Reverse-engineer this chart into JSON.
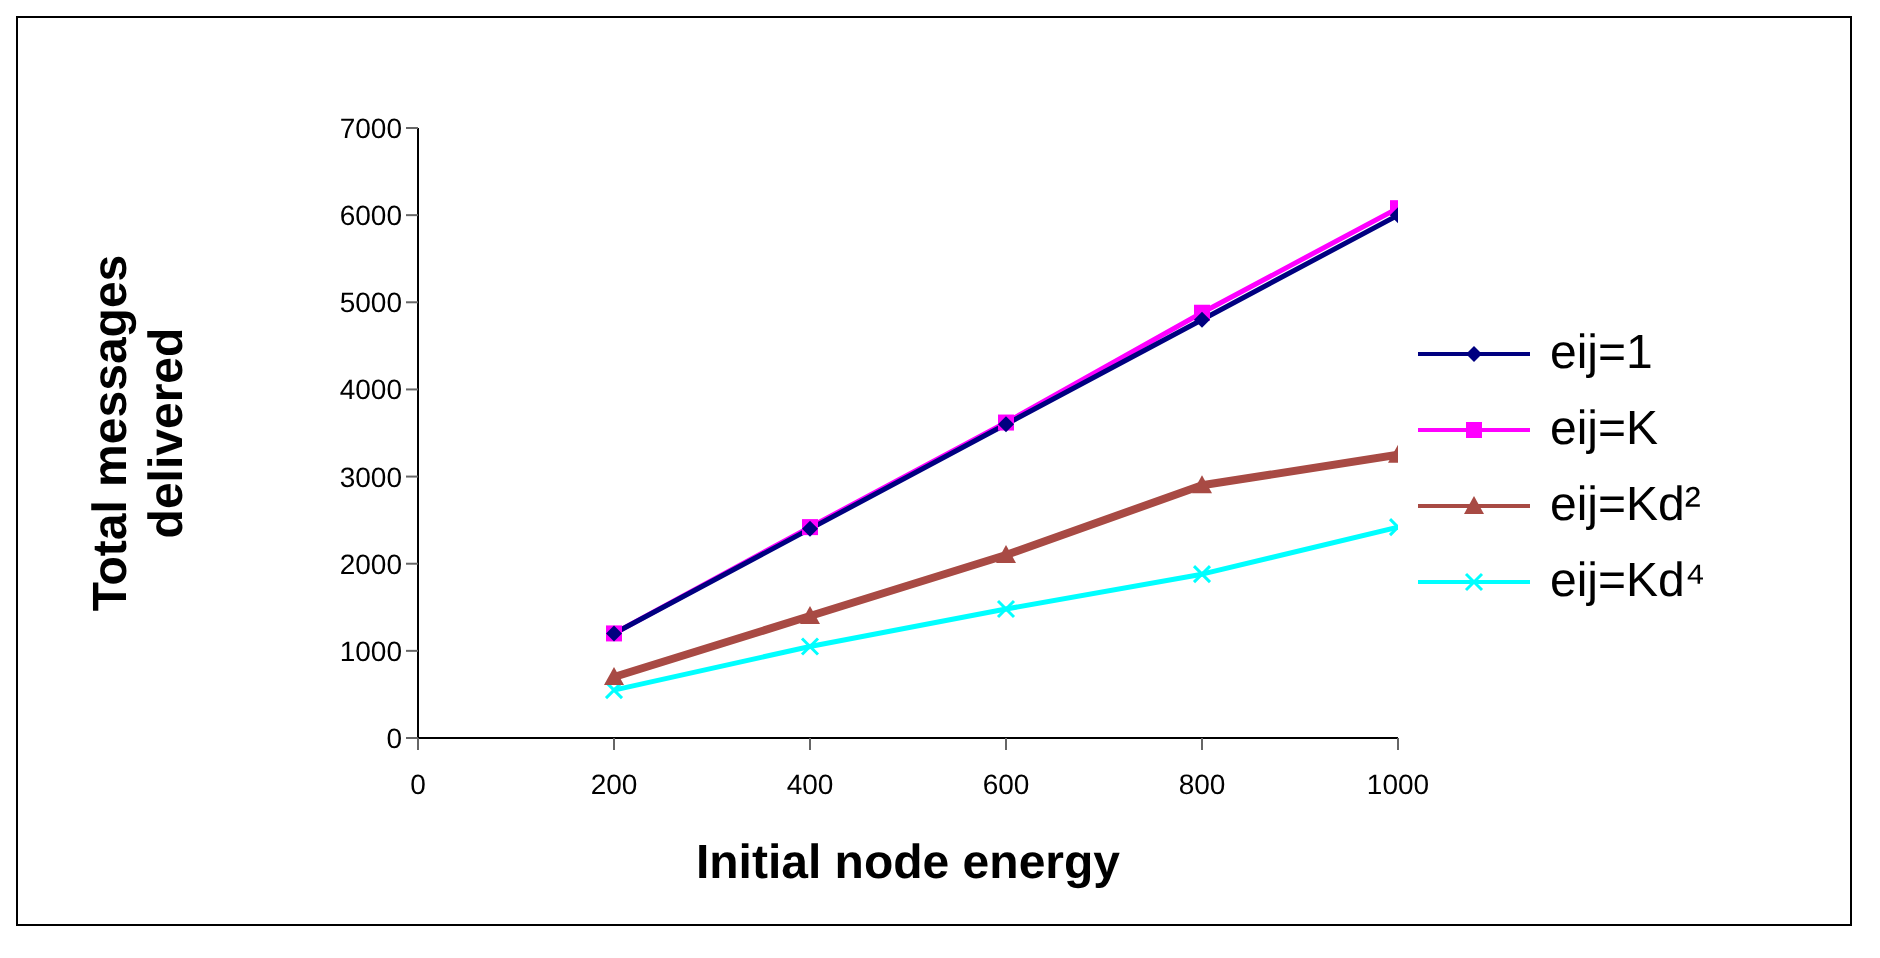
{
  "chart_data": {
    "type": "line",
    "xlabel": "Initial node energy",
    "ylabel": "Total messages delivered",
    "x": [
      200,
      400,
      600,
      800,
      1000
    ],
    "xlim": [
      0,
      1000
    ],
    "xticks": [
      0,
      200,
      400,
      600,
      800,
      1000
    ],
    "ylim": [
      0,
      7000
    ],
    "yticks": [
      0,
      1000,
      2000,
      3000,
      4000,
      5000,
      6000,
      7000
    ],
    "grid": false,
    "legend": "right",
    "series": [
      {
        "name": "eij=1",
        "color": "#000080",
        "marker": "diamond",
        "values": [
          1200,
          2400,
          3600,
          4800,
          6000
        ]
      },
      {
        "name": "eij=K",
        "color": "#ff00ff",
        "marker": "square",
        "values": [
          1200,
          2420,
          3620,
          4880,
          6080
        ]
      },
      {
        "name": "eij=Kd²",
        "color": "#a84a44",
        "marker": "triangle",
        "values": [
          700,
          1400,
          2100,
          2900,
          3250
        ]
      },
      {
        "name": "eij=Kd⁴",
        "color": "#00ffff",
        "marker": "cross",
        "values": [
          550,
          1050,
          1480,
          1880,
          2420
        ]
      }
    ]
  }
}
